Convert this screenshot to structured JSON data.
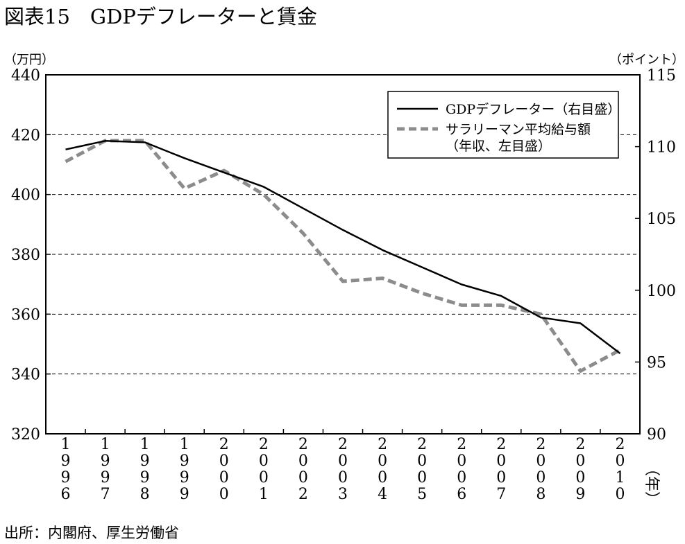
{
  "title": "図表15　GDPデフレーターと賃金",
  "left_unit": "（万円）",
  "right_unit": "（ポイント）",
  "x_unit": "（年）",
  "source": "出所：内閣府、厚生労働省",
  "chart_data": {
    "type": "line",
    "x": [
      "1996",
      "1997",
      "1998",
      "1999",
      "2000",
      "2001",
      "2002",
      "2003",
      "2004",
      "2005",
      "2006",
      "2007",
      "2008",
      "2009",
      "2010"
    ],
    "left_axis": {
      "ylim": [
        320,
        440
      ],
      "ticks": [
        440,
        420,
        400,
        380,
        360,
        340,
        320
      ]
    },
    "right_axis": {
      "ylim": [
        90,
        115
      ],
      "ticks": [
        115,
        110,
        105,
        100,
        95,
        90
      ]
    },
    "grid": true,
    "legend_position": "top-right",
    "series": [
      {
        "name": "GDPデフレーター（右目盛）",
        "axis": "right",
        "style": "solid",
        "color": "#000000",
        "values": [
          109.8,
          110.4,
          110.3,
          109.2,
          108.2,
          107.2,
          105.7,
          104.2,
          102.8,
          101.6,
          100.4,
          99.6,
          98.1,
          97.7,
          95.6
        ]
      },
      {
        "name": "サラリーマン平均給与額",
        "name_line2": "（年収、左目盛）",
        "axis": "left",
        "style": "dashed",
        "color": "#8c8c8c",
        "values": [
          411,
          418,
          418,
          402,
          408,
          400,
          387,
          371,
          372,
          367,
          363,
          363,
          360,
          341,
          348
        ]
      }
    ]
  }
}
